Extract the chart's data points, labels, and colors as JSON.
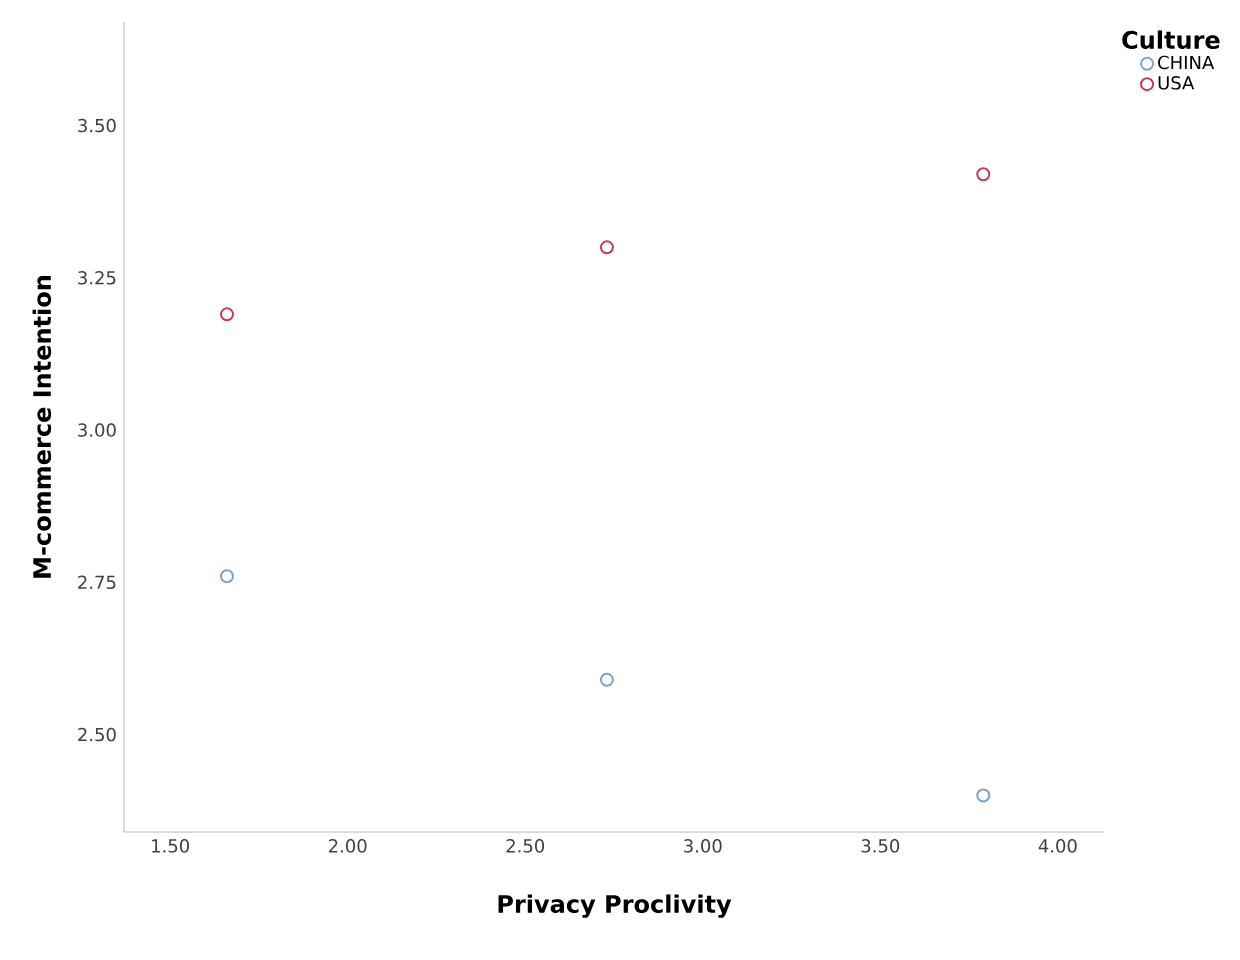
{
  "chart_data": {
    "type": "scatter",
    "xlabel": "Privacy Proclivity",
    "ylabel": "M-commerce Intention",
    "legend_title": "Culture",
    "legend": "top right",
    "marker": "circle",
    "series": [
      {
        "name": "CHINA",
        "color": "#7ba3d0",
        "x": [
          1.66,
          2.73,
          3.79
        ],
        "values": [
          2.76,
          2.59,
          2.4
        ]
      },
      {
        "name": "USA",
        "color": "#c8385a",
        "x": [
          1.66,
          2.73,
          3.79
        ],
        "values": [
          3.19,
          3.3,
          3.42
        ]
      }
    ],
    "xlim": [
      1.37,
      4.13
    ],
    "ylim": [
      2.34,
      3.67
    ],
    "xticks": [
      {
        "value": 1.5,
        "label": "1.50"
      },
      {
        "value": 2.0,
        "label": "2.00"
      },
      {
        "value": 2.5,
        "label": "2.50"
      },
      {
        "value": 3.0,
        "label": "3.00"
      },
      {
        "value": 3.5,
        "label": "3.50"
      },
      {
        "value": 4.0,
        "label": "4.00"
      }
    ],
    "yticks": [
      {
        "value": 2.5,
        "label": "2.50"
      },
      {
        "value": 2.75,
        "label": "2.75"
      },
      {
        "value": 3.0,
        "label": "3.00"
      },
      {
        "value": 3.25,
        "label": "3.25"
      },
      {
        "value": 3.5,
        "label": "3.50"
      }
    ]
  }
}
